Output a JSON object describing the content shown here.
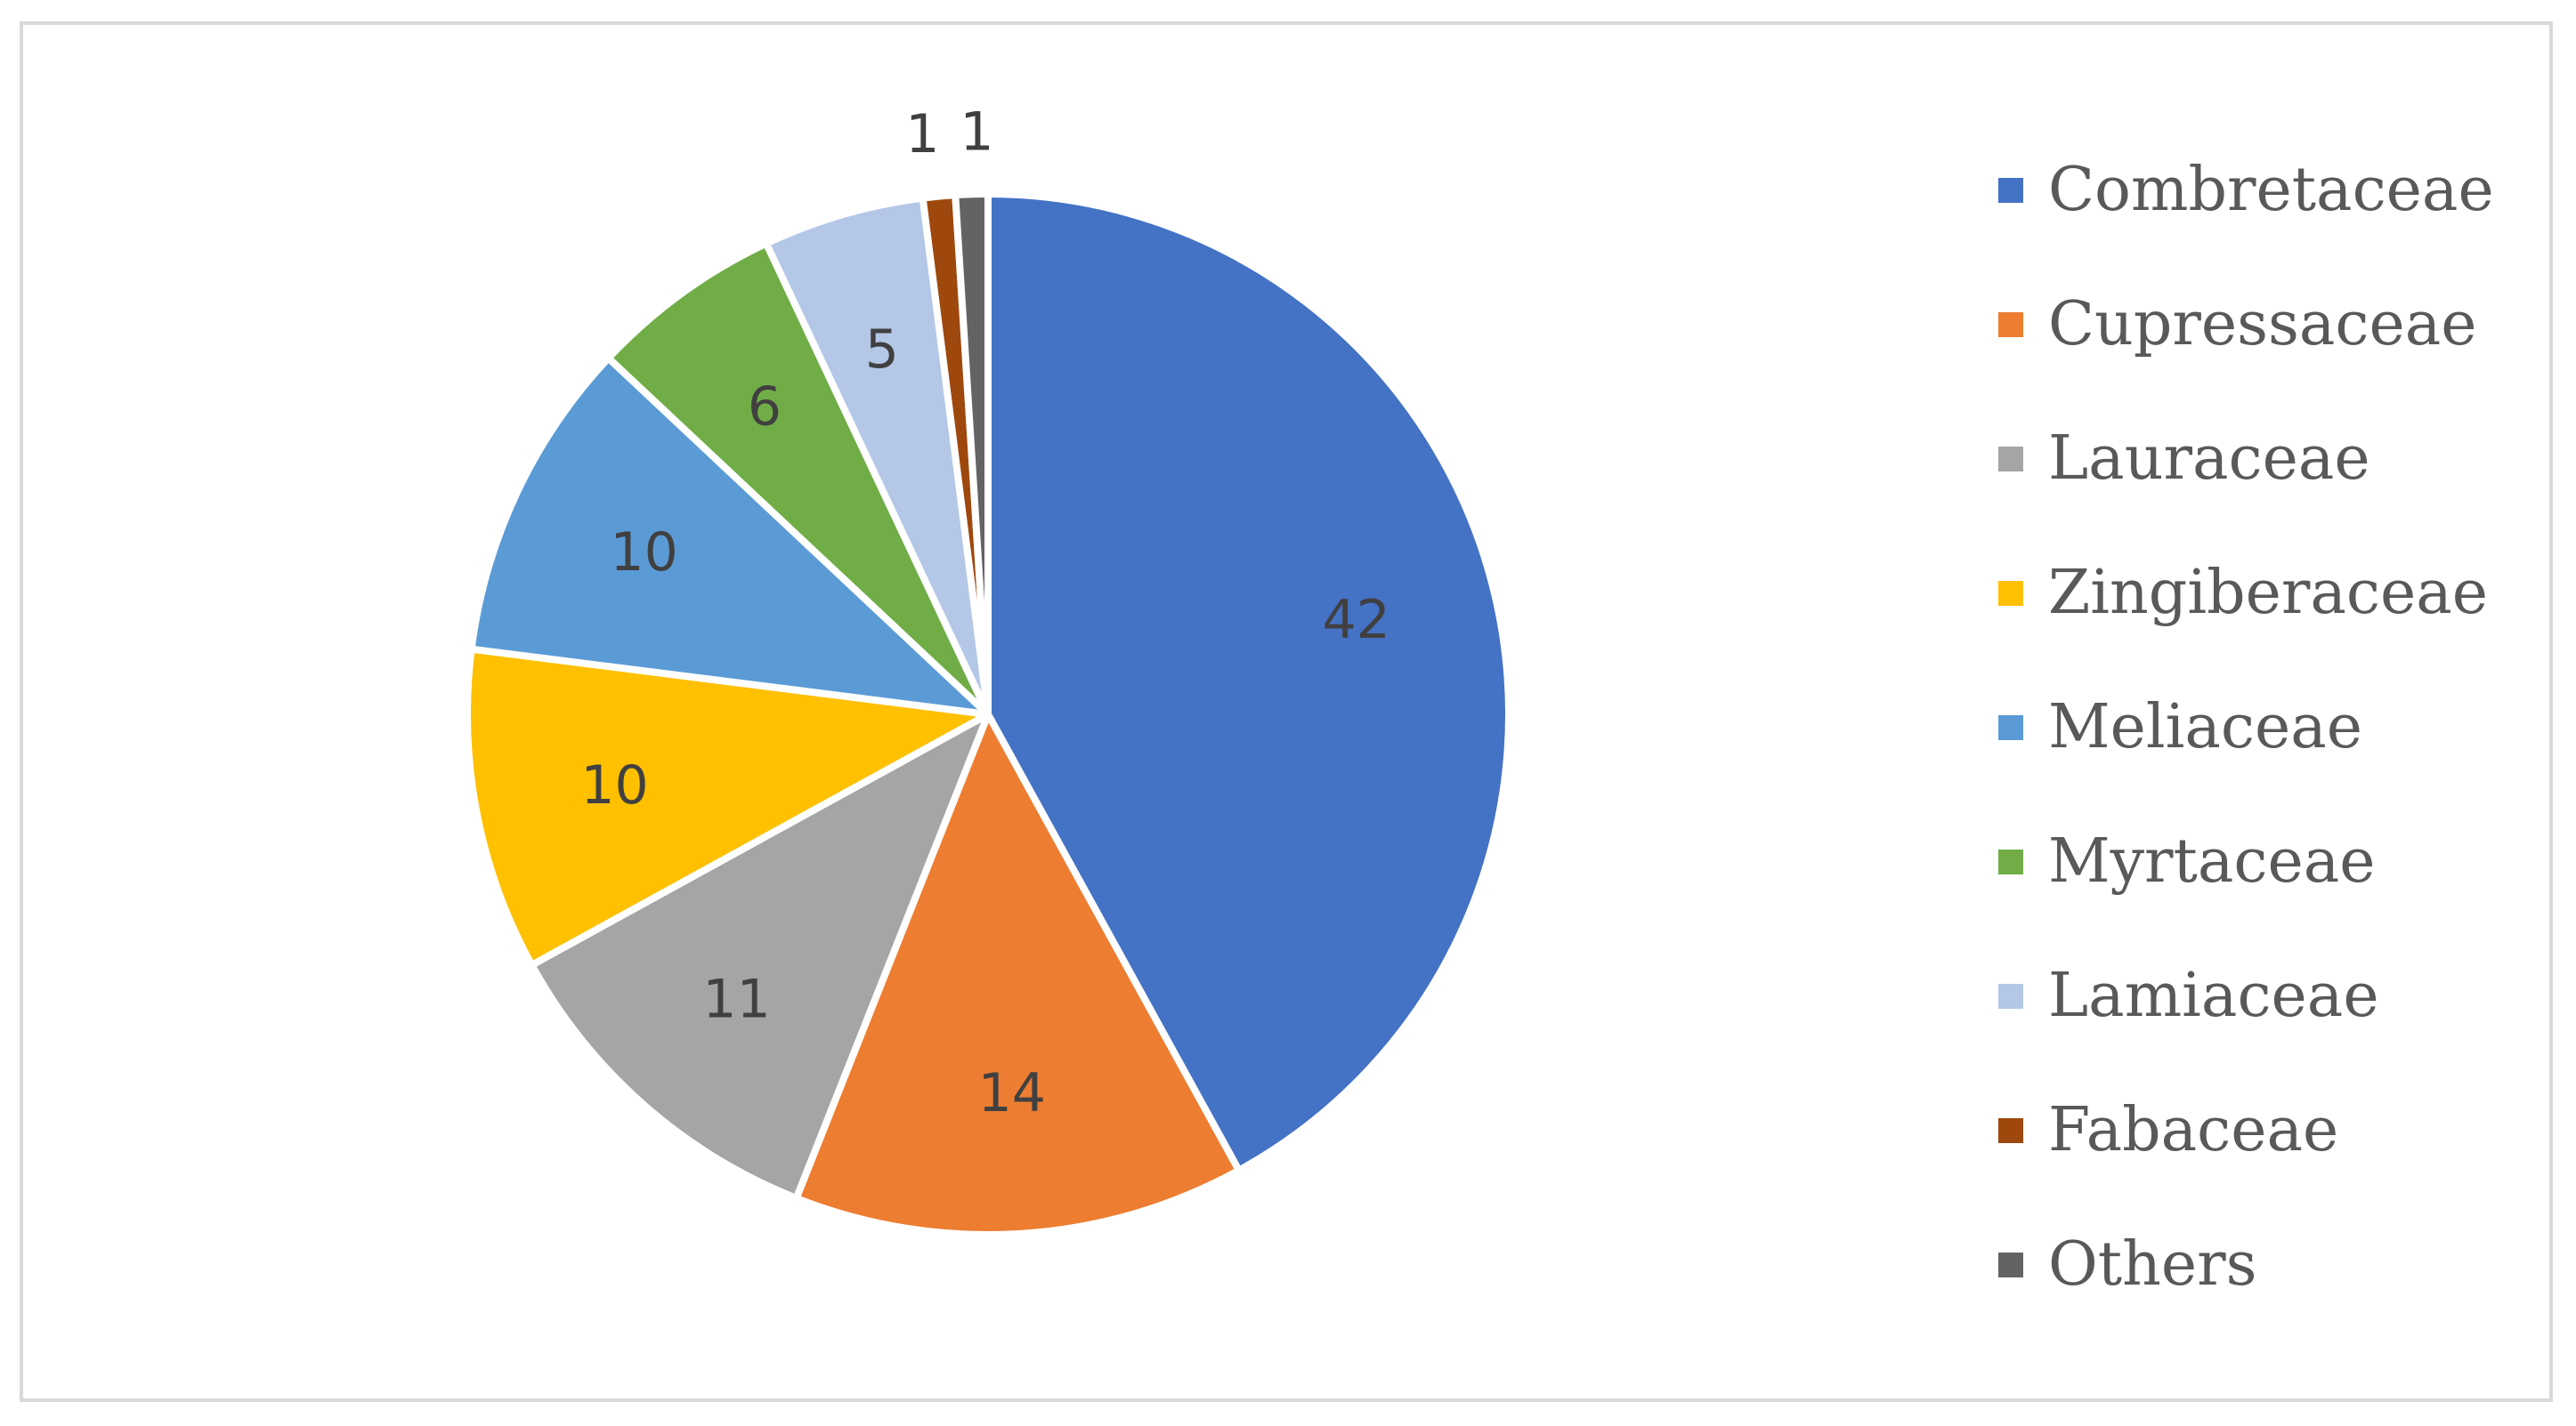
{
  "chart_data": {
    "type": "pie",
    "categories": [
      "Combretaceae",
      "Cupressaceae",
      "Lauraceae",
      "Zingiberaceae",
      "Meliaceae",
      "Myrtaceae",
      "Lamiaceae",
      "Fabaceae",
      "Others"
    ],
    "values": [
      42,
      14,
      11,
      10,
      10,
      6,
      5,
      1,
      1
    ],
    "colors": [
      "#4472C4",
      "#ED7D31",
      "#A5A5A5",
      "#FFC000",
      "#5B9BD5",
      "#70AD47",
      "#B4C7E7",
      "#9E480E",
      "#636363"
    ],
    "data_labels": [
      "42",
      "14",
      "11",
      "10",
      "10",
      "6",
      "5",
      "1",
      "1"
    ],
    "start_angle": "12 o'clock",
    "direction": "clockwise",
    "legend_position": "right",
    "title": ""
  }
}
